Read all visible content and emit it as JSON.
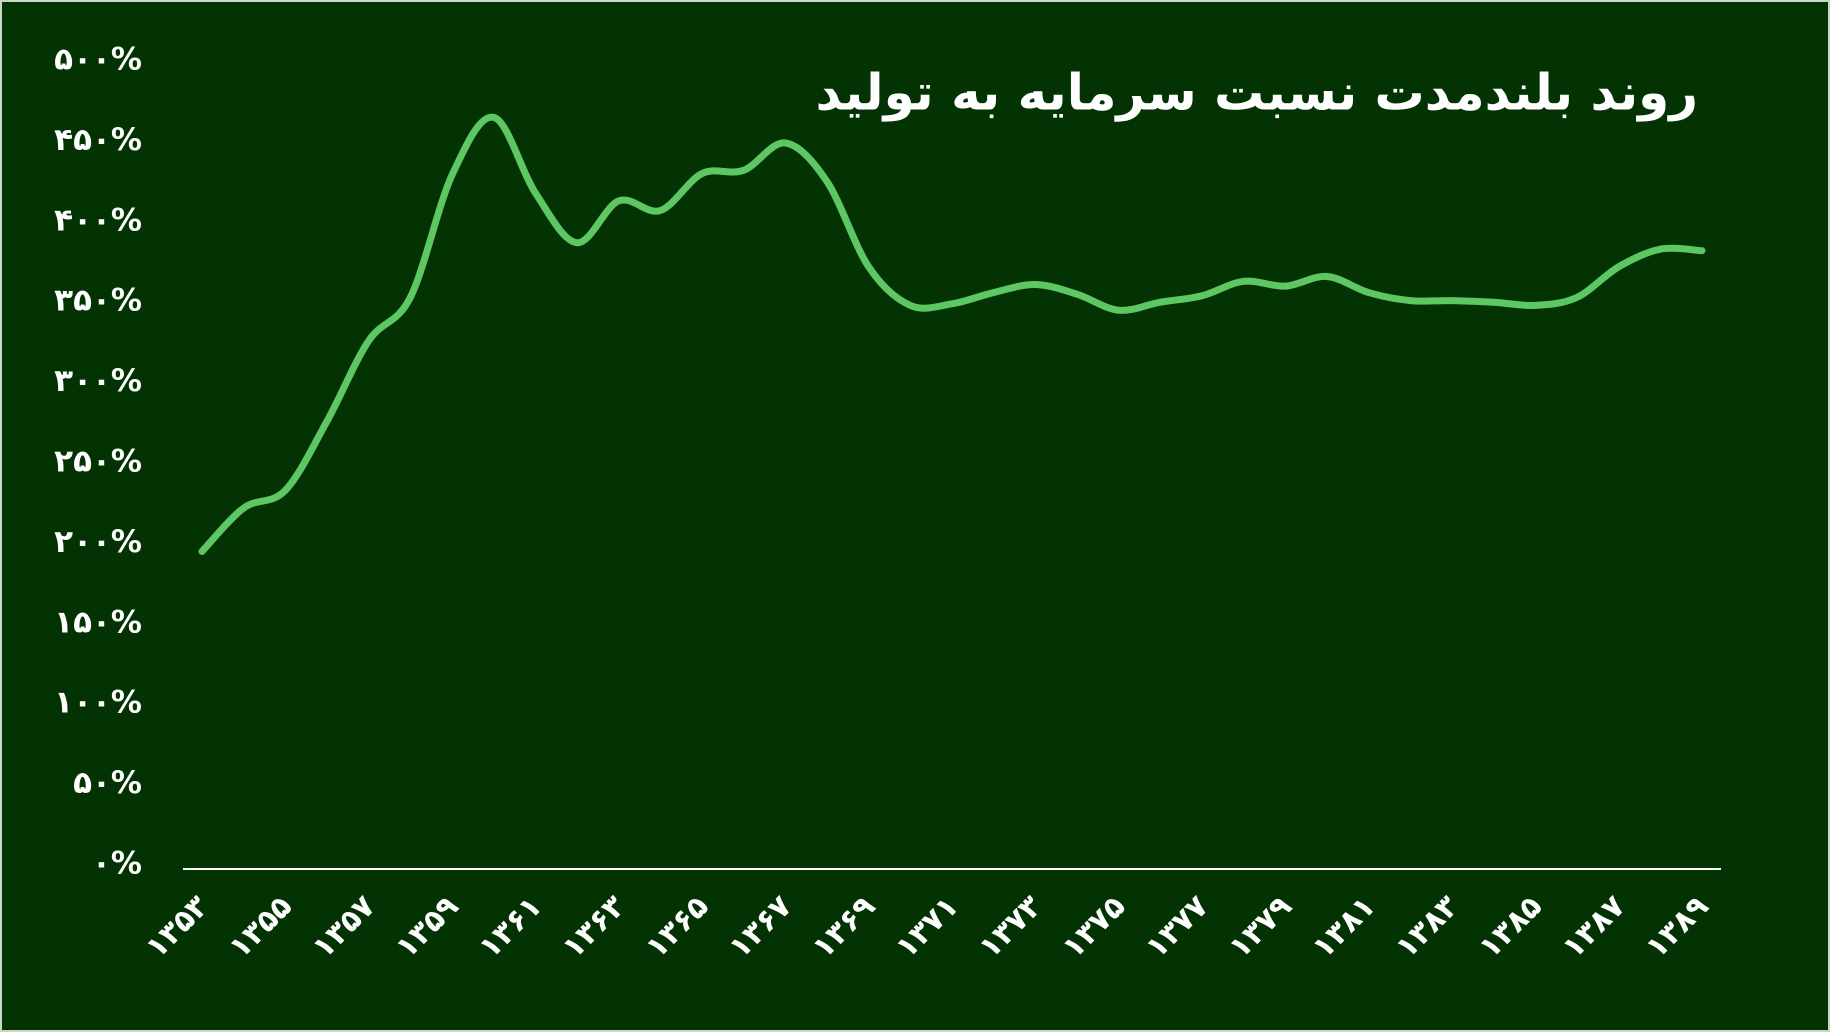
{
  "chart_data": {
    "type": "line",
    "title": "روند بلندمدت نسبت سرمایه به تولید",
    "categories": [
      "۱۳۵۳",
      null,
      "۱۳۵۵",
      null,
      "۱۳۵۷",
      null,
      "۱۳۵۹",
      null,
      "۱۳۶۱",
      null,
      "۱۳۶۳",
      null,
      "۱۳۶۵",
      null,
      "۱۳۶۷",
      null,
      "۱۳۶۹",
      null,
      "۱۳۷۱",
      null,
      "۱۳۷۳",
      null,
      "۱۳۷۵",
      null,
      "۱۳۷۷",
      null,
      "۱۳۷۹",
      null,
      "۱۳۸۱",
      null,
      "۱۳۸۳",
      null,
      "۱۳۸۵",
      null,
      "۱۳۸۷",
      null,
      "۱۳۸۹"
    ],
    "values": [
      195,
      222,
      233,
      276,
      326,
      353,
      429,
      465,
      418,
      387,
      413,
      407,
      430,
      432,
      449,
      425,
      372,
      348,
      349,
      356,
      361,
      355,
      345,
      350,
      354,
      363,
      360,
      366,
      356,
      351,
      351,
      350,
      348,
      353,
      372,
      383,
      382
    ],
    "color": "#5cc763",
    "ylim": [
      0,
      500
    ],
    "yticks": [
      {
        "value": 0,
        "label": "۰%"
      },
      {
        "value": 50,
        "label": "۵۰%"
      },
      {
        "value": 100,
        "label": "۱۰۰%"
      },
      {
        "value": 150,
        "label": "۱۵۰%"
      },
      {
        "value": 200,
        "label": "۲۰۰%"
      },
      {
        "value": 250,
        "label": "۲۵۰%"
      },
      {
        "value": 300,
        "label": "۳۰۰%"
      },
      {
        "value": 350,
        "label": "۳۵۰%"
      },
      {
        "value": 400,
        "label": "۴۰۰%"
      },
      {
        "value": 450,
        "label": "۴۵۰%"
      },
      {
        "value": 500,
        "label": "۵۰۰%"
      }
    ],
    "grid": false
  }
}
